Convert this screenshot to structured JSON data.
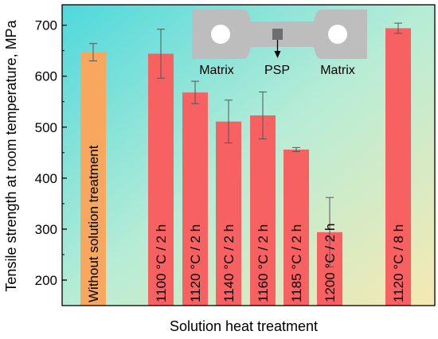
{
  "chart_data": {
    "type": "bar",
    "xlabel": "Solution heat treatment",
    "ylabel": "Tensile strength at room temperature, MPa",
    "ylim": [
      150,
      740
    ],
    "yticks": [
      200,
      300,
      400,
      500,
      600,
      700
    ],
    "grid": false,
    "bars": [
      {
        "label": "Without solution treatment",
        "value": 647,
        "error": 17,
        "color": "#F9A65E"
      },
      {
        "label": "1100 °C / 2 h",
        "value": 644,
        "error": 48,
        "color": "#F86161"
      },
      {
        "label": "1120 °C / 2 h",
        "value": 568,
        "error": 22,
        "color": "#F86161"
      },
      {
        "label": "1140 °C / 2 h",
        "value": 511,
        "error": 42,
        "color": "#F86161"
      },
      {
        "label": "1160 °C / 2 h",
        "value": 523,
        "error": 46,
        "color": "#F86161"
      },
      {
        "label": "1185 °C / 2 h",
        "value": 456,
        "error": 4,
        "color": "#F86161"
      },
      {
        "label": "1200 °C / 2 h",
        "value": 294,
        "error": 68,
        "color": "#F86161"
      },
      {
        "label": "1120 °C / 8 h",
        "value": 694,
        "error": 10,
        "color": "#F86161"
      }
    ],
    "inset": {
      "labels": [
        "Matrix",
        "PSP",
        "Matrix"
      ]
    }
  }
}
